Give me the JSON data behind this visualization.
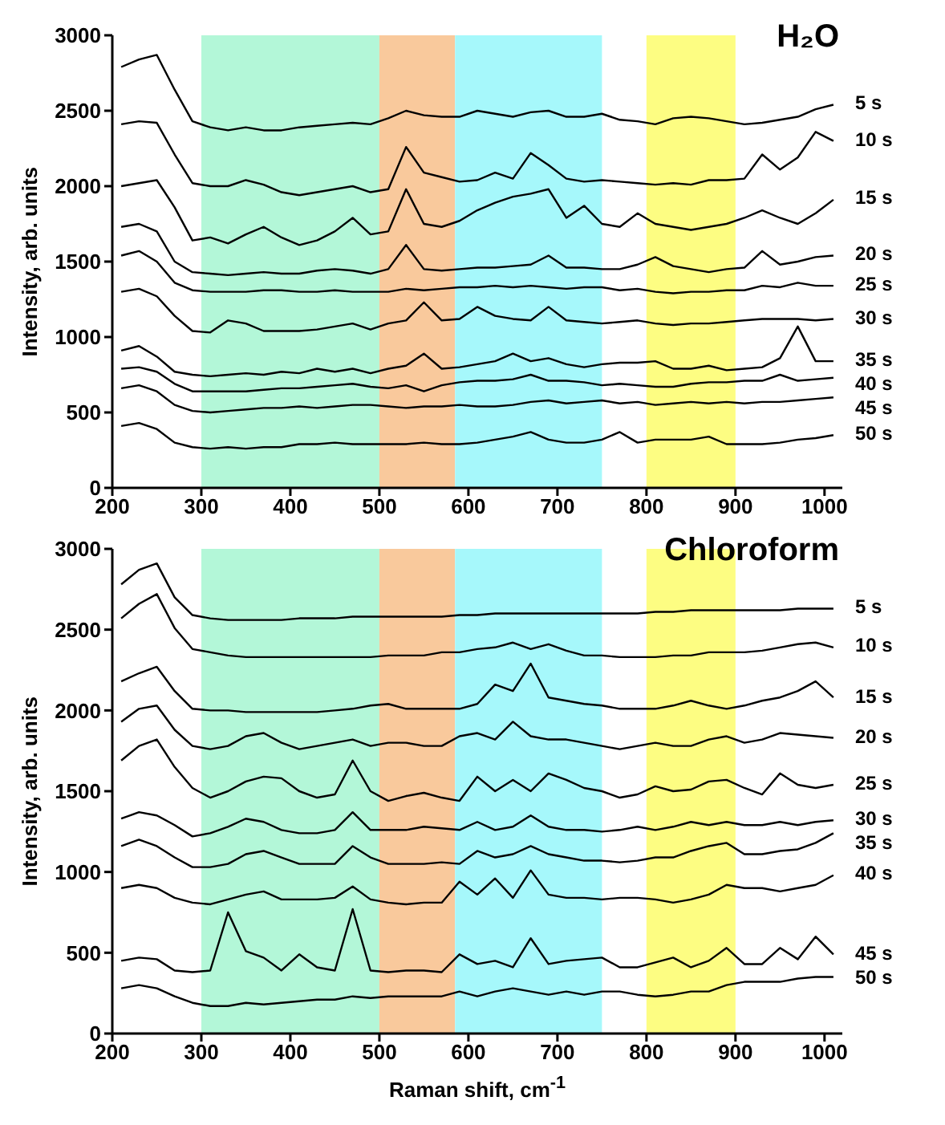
{
  "chart_data": [
    {
      "type": "line",
      "title": "H₂O",
      "ylabel": "Intensity, arb. units",
      "xlim": [
        200,
        1020
      ],
      "ylim": [
        0,
        3000
      ],
      "xticks": [
        200,
        300,
        400,
        500,
        600,
        700,
        800,
        900,
        1000
      ],
      "yticks": [
        0,
        500,
        1000,
        1500,
        2000,
        2500,
        3000
      ],
      "legend": false,
      "x": [
        210,
        230,
        250,
        270,
        290,
        310,
        330,
        350,
        370,
        390,
        410,
        430,
        450,
        470,
        490,
        510,
        530,
        550,
        570,
        590,
        610,
        630,
        650,
        670,
        690,
        710,
        730,
        750,
        770,
        790,
        810,
        830,
        850,
        870,
        890,
        910,
        930,
        950,
        970,
        990,
        1010
      ],
      "bands": [
        {
          "axis": "x",
          "from": 300,
          "to": 500,
          "color": "#b3f7d8"
        },
        {
          "axis": "x",
          "from": 500,
          "to": 585,
          "color": "#f9c99c"
        },
        {
          "axis": "x",
          "from": 585,
          "to": 750,
          "color": "#a6f8fb"
        },
        {
          "axis": "x",
          "from": 800,
          "to": 900,
          "color": "#fdfd82"
        }
      ],
      "series": [
        {
          "name": "5 s",
          "color": "#000000",
          "values": [
            2790,
            2840,
            2870,
            2640,
            2430,
            2390,
            2370,
            2390,
            2370,
            2370,
            2390,
            2400,
            2410,
            2420,
            2410,
            2450,
            2500,
            2470,
            2460,
            2460,
            2500,
            2480,
            2460,
            2490,
            2500,
            2460,
            2460,
            2480,
            2440,
            2430,
            2410,
            2450,
            2460,
            2450,
            2430,
            2410,
            2420,
            2440,
            2460,
            2510,
            2540
          ]
        },
        {
          "name": "10 s",
          "color": "#000000",
          "values": [
            2410,
            2430,
            2420,
            2210,
            2020,
            2000,
            2000,
            2040,
            2010,
            1960,
            1940,
            1960,
            1980,
            2000,
            1960,
            1980,
            2260,
            2090,
            2060,
            2030,
            2040,
            2090,
            2050,
            2220,
            2140,
            2050,
            2030,
            2040,
            2030,
            2020,
            2010,
            2020,
            2010,
            2040,
            2040,
            2050,
            2210,
            2110,
            2190,
            2360,
            2300
          ]
        },
        {
          "name": "15 s",
          "color": "#000000",
          "values": [
            2000,
            2020,
            2040,
            1860,
            1640,
            1660,
            1620,
            1680,
            1730,
            1660,
            1610,
            1640,
            1700,
            1790,
            1680,
            1700,
            1980,
            1750,
            1730,
            1770,
            1840,
            1890,
            1930,
            1950,
            1980,
            1790,
            1870,
            1750,
            1730,
            1820,
            1750,
            1730,
            1710,
            1730,
            1750,
            1790,
            1840,
            1790,
            1750,
            1820,
            1910
          ]
        },
        {
          "name": "20 s",
          "color": "#000000",
          "values": [
            1730,
            1750,
            1700,
            1500,
            1430,
            1420,
            1410,
            1420,
            1430,
            1420,
            1420,
            1440,
            1450,
            1440,
            1420,
            1450,
            1610,
            1450,
            1440,
            1450,
            1460,
            1460,
            1470,
            1480,
            1540,
            1460,
            1460,
            1450,
            1450,
            1480,
            1530,
            1470,
            1450,
            1430,
            1450,
            1460,
            1570,
            1480,
            1500,
            1530,
            1540
          ]
        },
        {
          "name": "25 s",
          "color": "#000000",
          "values": [
            1540,
            1570,
            1500,
            1360,
            1310,
            1300,
            1300,
            1300,
            1310,
            1310,
            1300,
            1300,
            1310,
            1300,
            1300,
            1300,
            1320,
            1310,
            1320,
            1330,
            1330,
            1340,
            1330,
            1340,
            1330,
            1320,
            1330,
            1330,
            1310,
            1320,
            1300,
            1290,
            1300,
            1300,
            1310,
            1310,
            1340,
            1330,
            1360,
            1340,
            1340
          ]
        },
        {
          "name": "30 s",
          "color": "#000000",
          "values": [
            1300,
            1320,
            1270,
            1140,
            1040,
            1030,
            1110,
            1090,
            1040,
            1040,
            1040,
            1050,
            1070,
            1090,
            1050,
            1090,
            1110,
            1230,
            1110,
            1120,
            1200,
            1140,
            1120,
            1110,
            1200,
            1110,
            1100,
            1090,
            1100,
            1110,
            1090,
            1080,
            1090,
            1090,
            1100,
            1110,
            1120,
            1120,
            1120,
            1110,
            1120
          ]
        },
        {
          "name": "35 s",
          "color": "#000000",
          "values": [
            910,
            940,
            870,
            770,
            750,
            740,
            750,
            760,
            750,
            770,
            760,
            790,
            770,
            790,
            760,
            790,
            810,
            890,
            790,
            800,
            820,
            840,
            890,
            840,
            860,
            820,
            800,
            820,
            830,
            830,
            840,
            790,
            790,
            810,
            780,
            790,
            800,
            860,
            1070,
            840,
            840
          ]
        },
        {
          "name": "40 s",
          "color": "#000000",
          "values": [
            790,
            800,
            770,
            690,
            640,
            640,
            640,
            640,
            650,
            660,
            660,
            670,
            680,
            690,
            670,
            660,
            680,
            640,
            680,
            700,
            710,
            710,
            720,
            750,
            710,
            710,
            700,
            680,
            690,
            680,
            670,
            670,
            690,
            700,
            700,
            710,
            710,
            750,
            710,
            720,
            730
          ]
        },
        {
          "name": "45 s",
          "color": "#000000",
          "values": [
            660,
            680,
            640,
            550,
            510,
            500,
            510,
            520,
            530,
            530,
            540,
            530,
            540,
            550,
            550,
            540,
            530,
            540,
            540,
            550,
            540,
            540,
            550,
            570,
            580,
            560,
            570,
            580,
            560,
            570,
            550,
            560,
            570,
            560,
            570,
            560,
            570,
            570,
            580,
            590,
            600
          ]
        },
        {
          "name": "50 s",
          "color": "#000000",
          "values": [
            410,
            430,
            390,
            300,
            270,
            260,
            270,
            260,
            270,
            270,
            290,
            290,
            300,
            290,
            290,
            290,
            290,
            300,
            290,
            290,
            300,
            320,
            340,
            370,
            320,
            300,
            300,
            320,
            370,
            300,
            320,
            320,
            320,
            340,
            290,
            290,
            290,
            300,
            320,
            330,
            350
          ]
        }
      ]
    },
    {
      "type": "line",
      "title": "Chloroform",
      "xlabel": "Raman shift, cm$^{-1}$",
      "ylabel": "Intensity, arb. units",
      "xlim": [
        200,
        1020
      ],
      "ylim": [
        0,
        3000
      ],
      "xticks": [
        200,
        300,
        400,
        500,
        600,
        700,
        800,
        900,
        1000
      ],
      "yticks": [
        0,
        500,
        1000,
        1500,
        2000,
        2500,
        3000
      ],
      "legend": false,
      "x": [
        210,
        230,
        250,
        270,
        290,
        310,
        330,
        350,
        370,
        390,
        410,
        430,
        450,
        470,
        490,
        510,
        530,
        550,
        570,
        590,
        610,
        630,
        650,
        670,
        690,
        710,
        730,
        750,
        770,
        790,
        810,
        830,
        850,
        870,
        890,
        910,
        930,
        950,
        970,
        990,
        1010
      ],
      "bands": [
        {
          "axis": "x",
          "from": 300,
          "to": 500,
          "color": "#b3f7d8"
        },
        {
          "axis": "x",
          "from": 500,
          "to": 585,
          "color": "#f9c99c"
        },
        {
          "axis": "x",
          "from": 585,
          "to": 750,
          "color": "#a6f8fb"
        },
        {
          "axis": "x",
          "from": 800,
          "to": 900,
          "color": "#fdfd82"
        }
      ],
      "series": [
        {
          "name": "5 s",
          "color": "#000000",
          "values": [
            2780,
            2870,
            2910,
            2700,
            2590,
            2570,
            2560,
            2560,
            2560,
            2560,
            2570,
            2570,
            2570,
            2580,
            2580,
            2580,
            2580,
            2580,
            2580,
            2590,
            2590,
            2600,
            2600,
            2600,
            2600,
            2600,
            2600,
            2600,
            2600,
            2600,
            2610,
            2610,
            2620,
            2620,
            2620,
            2620,
            2620,
            2620,
            2630,
            2630,
            2630
          ]
        },
        {
          "name": "10 s",
          "color": "#000000",
          "values": [
            2570,
            2660,
            2720,
            2510,
            2380,
            2360,
            2340,
            2330,
            2330,
            2330,
            2330,
            2330,
            2330,
            2330,
            2330,
            2340,
            2340,
            2340,
            2360,
            2360,
            2380,
            2390,
            2420,
            2380,
            2410,
            2370,
            2340,
            2340,
            2330,
            2330,
            2330,
            2340,
            2340,
            2360,
            2360,
            2360,
            2370,
            2390,
            2410,
            2420,
            2390
          ]
        },
        {
          "name": "15 s",
          "color": "#000000",
          "values": [
            2180,
            2230,
            2270,
            2120,
            2010,
            2000,
            2000,
            1990,
            1990,
            1990,
            1990,
            1990,
            2000,
            2010,
            2030,
            2040,
            2010,
            2010,
            2010,
            2010,
            2040,
            2160,
            2120,
            2290,
            2080,
            2060,
            2040,
            2030,
            2010,
            2010,
            2010,
            2030,
            2060,
            2030,
            2010,
            2030,
            2060,
            2080,
            2120,
            2180,
            2080
          ]
        },
        {
          "name": "20 s",
          "color": "#000000",
          "values": [
            1930,
            2010,
            2030,
            1880,
            1780,
            1760,
            1780,
            1840,
            1860,
            1800,
            1760,
            1780,
            1800,
            1820,
            1780,
            1800,
            1800,
            1780,
            1780,
            1840,
            1860,
            1820,
            1930,
            1840,
            1820,
            1820,
            1800,
            1780,
            1760,
            1780,
            1800,
            1780,
            1780,
            1820,
            1840,
            1800,
            1820,
            1860,
            1850,
            1840,
            1830
          ]
        },
        {
          "name": "25 s",
          "color": "#000000",
          "values": [
            1690,
            1780,
            1820,
            1650,
            1520,
            1460,
            1500,
            1560,
            1590,
            1580,
            1500,
            1460,
            1480,
            1690,
            1500,
            1440,
            1470,
            1490,
            1460,
            1440,
            1590,
            1500,
            1570,
            1500,
            1610,
            1570,
            1520,
            1500,
            1460,
            1480,
            1530,
            1500,
            1510,
            1560,
            1570,
            1520,
            1480,
            1610,
            1540,
            1520,
            1540
          ]
        },
        {
          "name": "30 s",
          "color": "#000000",
          "values": [
            1330,
            1370,
            1350,
            1290,
            1220,
            1240,
            1280,
            1330,
            1310,
            1260,
            1240,
            1240,
            1260,
            1370,
            1260,
            1260,
            1260,
            1280,
            1270,
            1260,
            1310,
            1260,
            1280,
            1350,
            1280,
            1260,
            1260,
            1250,
            1260,
            1280,
            1260,
            1280,
            1310,
            1290,
            1310,
            1290,
            1290,
            1310,
            1290,
            1310,
            1320
          ]
        },
        {
          "name": "35 s",
          "color": "#000000",
          "values": [
            1160,
            1200,
            1160,
            1090,
            1030,
            1030,
            1050,
            1110,
            1130,
            1090,
            1050,
            1050,
            1050,
            1160,
            1090,
            1050,
            1050,
            1050,
            1060,
            1050,
            1130,
            1090,
            1110,
            1160,
            1110,
            1090,
            1070,
            1070,
            1060,
            1070,
            1090,
            1090,
            1130,
            1160,
            1180,
            1110,
            1110,
            1130,
            1140,
            1180,
            1240
          ]
        },
        {
          "name": "40 s",
          "color": "#000000",
          "values": [
            900,
            920,
            900,
            840,
            810,
            800,
            830,
            860,
            880,
            830,
            830,
            830,
            840,
            910,
            830,
            810,
            800,
            810,
            810,
            940,
            860,
            960,
            840,
            1010,
            860,
            840,
            840,
            830,
            840,
            840,
            830,
            810,
            830,
            860,
            920,
            900,
            900,
            880,
            900,
            920,
            980
          ]
        },
        {
          "name": "45 s",
          "color": "#000000",
          "values": [
            450,
            470,
            460,
            390,
            380,
            390,
            750,
            510,
            470,
            390,
            490,
            410,
            390,
            770,
            390,
            380,
            390,
            390,
            380,
            490,
            430,
            450,
            410,
            590,
            430,
            450,
            460,
            470,
            410,
            410,
            440,
            470,
            410,
            450,
            530,
            430,
            430,
            530,
            460,
            600,
            490
          ]
        },
        {
          "name": "50 s",
          "color": "#000000",
          "values": [
            280,
            300,
            280,
            230,
            190,
            170,
            170,
            190,
            180,
            190,
            200,
            210,
            210,
            230,
            220,
            230,
            230,
            230,
            230,
            260,
            230,
            260,
            280,
            260,
            240,
            260,
            240,
            260,
            260,
            240,
            230,
            240,
            260,
            260,
            300,
            320,
            320,
            320,
            340,
            350,
            350
          ]
        }
      ]
    }
  ]
}
